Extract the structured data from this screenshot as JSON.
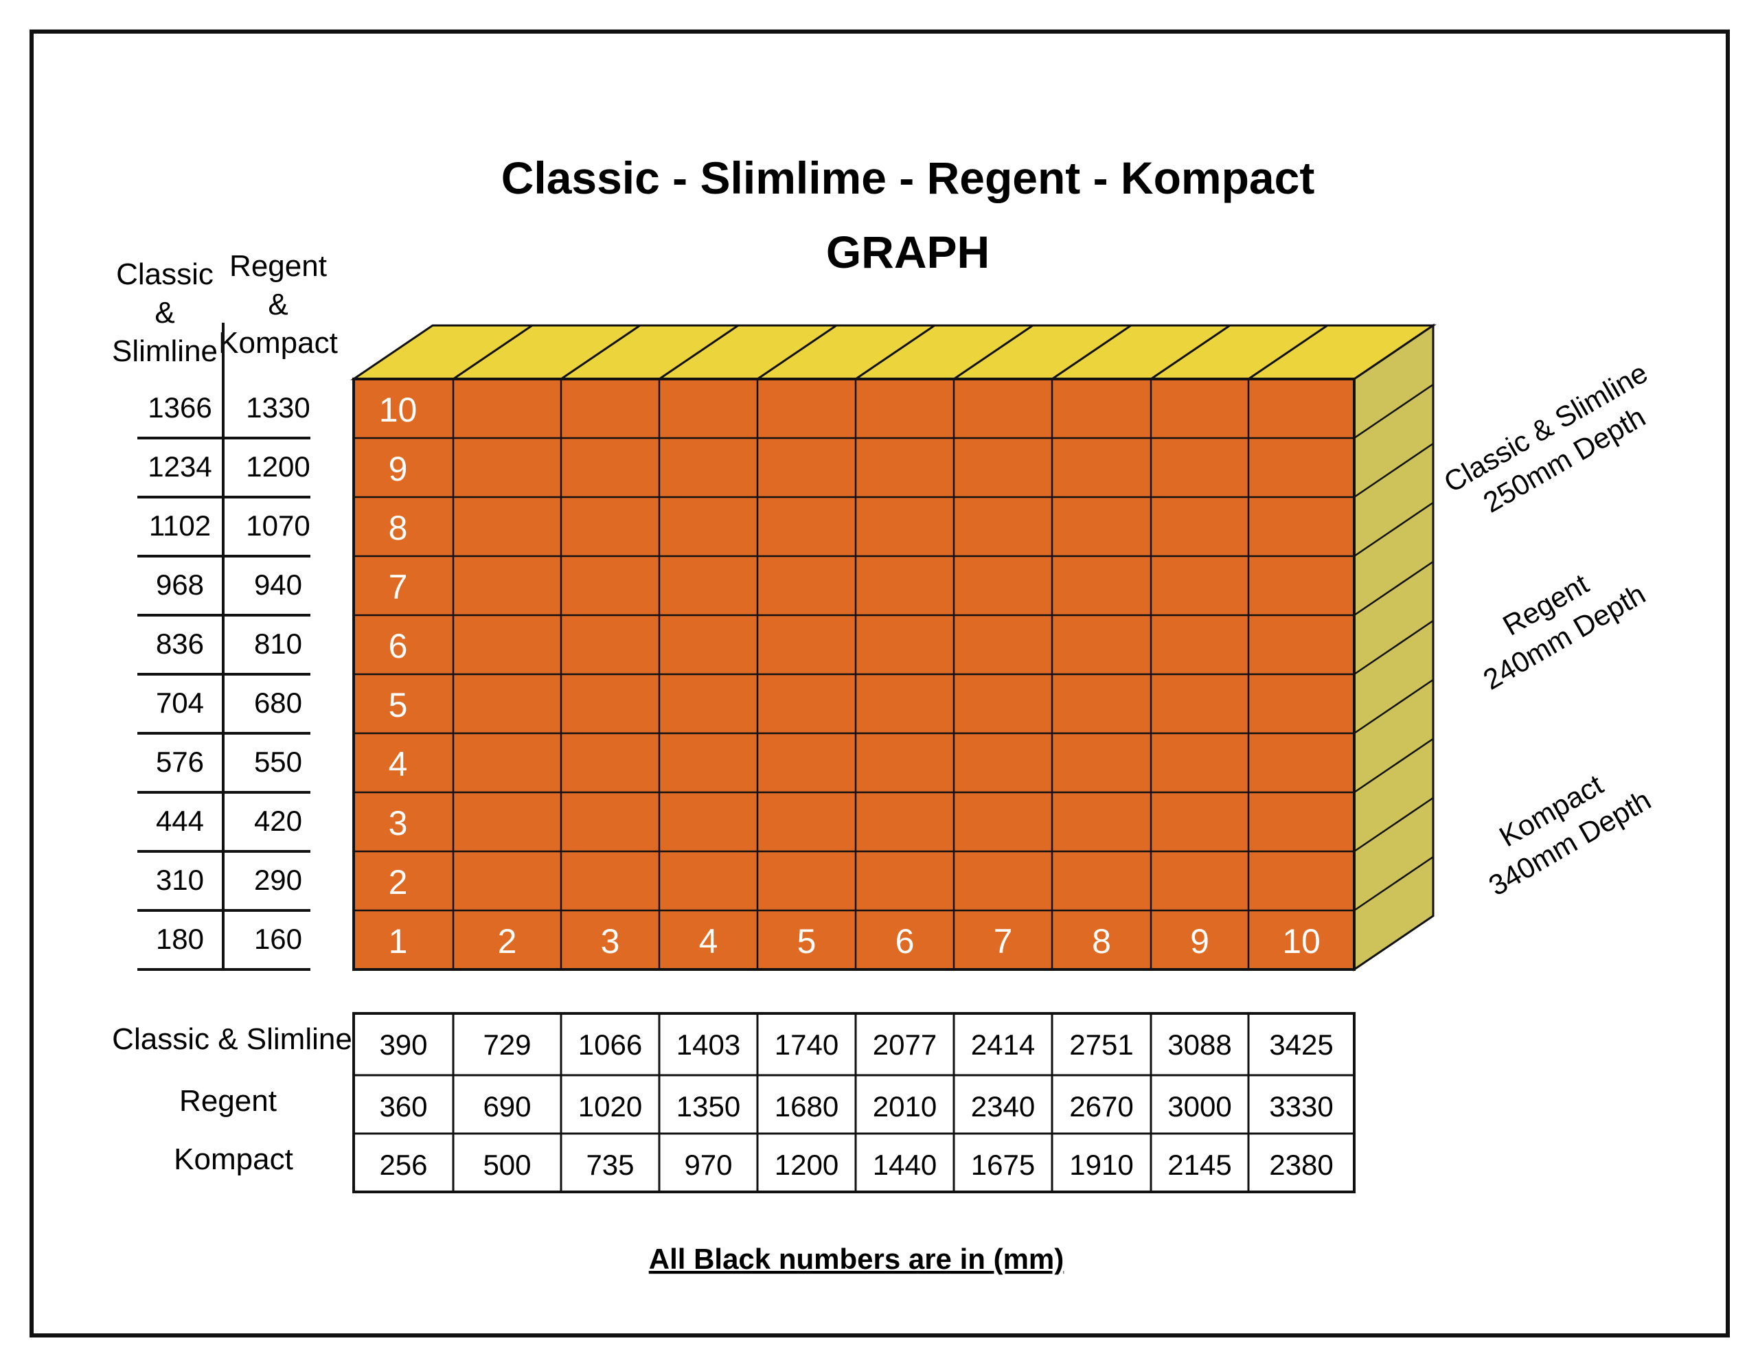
{
  "title": "Classic - Slimlime - Regent - Kompact",
  "subtitle": "GRAPH",
  "height_table": {
    "col1_header": [
      "Classic",
      "&",
      "Slimline"
    ],
    "col2_header": [
      "Regent",
      "&",
      "Kompact"
    ],
    "rows_top_to_bottom": [
      {
        "classic_slimline": "1366",
        "regent_kompact": "1330"
      },
      {
        "classic_slimline": "1234",
        "regent_kompact": "1200"
      },
      {
        "classic_slimline": "1102",
        "regent_kompact": "1070"
      },
      {
        "classic_slimline": "968",
        "regent_kompact": "940"
      },
      {
        "classic_slimline": "836",
        "regent_kompact": "810"
      },
      {
        "classic_slimline": "704",
        "regent_kompact": "680"
      },
      {
        "classic_slimline": "576",
        "regent_kompact": "550"
      },
      {
        "classic_slimline": "444",
        "regent_kompact": "420"
      },
      {
        "classic_slimline": "310",
        "regent_kompact": "290"
      },
      {
        "classic_slimline": "180",
        "regent_kompact": "160"
      }
    ]
  },
  "grid": {
    "row_labels_top_to_bottom": [
      "10",
      "9",
      "8",
      "7",
      "6",
      "5",
      "4",
      "3",
      "2",
      "1"
    ],
    "col_labels": [
      "1",
      "2",
      "3",
      "4",
      "5",
      "6",
      "7",
      "8",
      "9",
      "10"
    ],
    "front_color": "#df6a24",
    "top_color": "#ecd43c",
    "side_color": "#cdc35a"
  },
  "depth_labels": [
    {
      "line1": "Classic & Slimline",
      "line2": "250mm Depth"
    },
    {
      "line1": "Regent",
      "line2": "240mm Depth"
    },
    {
      "line1": "Kompact",
      "line2": "340mm Depth"
    }
  ],
  "width_table": {
    "rows": [
      {
        "label": "Classic & Slimline",
        "values": [
          "390",
          "729",
          "1066",
          "1403",
          "1740",
          "2077",
          "2414",
          "2751",
          "3088",
          "3425"
        ]
      },
      {
        "label": "Regent",
        "values": [
          "360",
          "690",
          "1020",
          "1350",
          "1680",
          "2010",
          "2340",
          "2670",
          "3000",
          "3330"
        ]
      },
      {
        "label": "Kompact",
        "values": [
          "256",
          "500",
          "735",
          "970",
          "1200",
          "1440",
          "1675",
          "1910",
          "2145",
          "2380"
        ]
      }
    ]
  },
  "footer_note": "All Black numbers are in  (mm)"
}
